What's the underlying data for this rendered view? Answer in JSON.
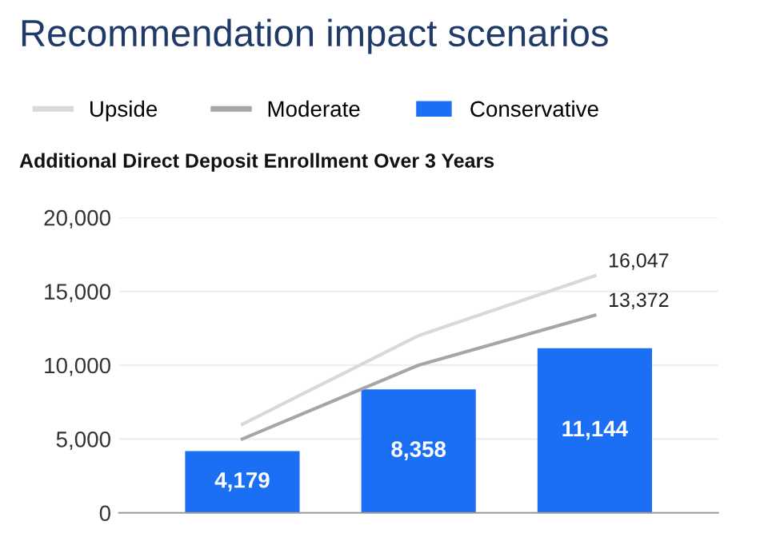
{
  "chart_data": {
    "type": "bar",
    "title": "Recommendation impact scenarios",
    "subtitle": "Additional Direct Deposit Enrollment Over 3 Years",
    "categories": [
      null,
      null,
      null
    ],
    "series": [
      {
        "name": "Upside",
        "type": "line",
        "color": "#d9d9d9",
        "values": [
          6000,
          12000,
          16047
        ],
        "value_labels": [
          null,
          null,
          "16,047"
        ]
      },
      {
        "name": "Moderate",
        "type": "line",
        "color": "#a6a6a6",
        "values": [
          5000,
          10000,
          13372
        ],
        "value_labels": [
          null,
          null,
          "13,372"
        ]
      },
      {
        "name": "Conservative",
        "color": "#1a6ff5",
        "values": [
          4179,
          8358,
          11144
        ],
        "value_labels": [
          "4,179",
          "8,358",
          "11,144"
        ]
      }
    ],
    "ylim": [
      0,
      20000
    ],
    "yticks": [
      {
        "value": 0,
        "label": "0"
      },
      {
        "value": 5000,
        "label": "5,000"
      },
      {
        "value": 10000,
        "label": "10,000"
      },
      {
        "value": 15000,
        "label": "15,000"
      },
      {
        "value": 20000,
        "label": "20,000"
      }
    ],
    "grid": "y",
    "legend": "top left",
    "marker": "none"
  }
}
